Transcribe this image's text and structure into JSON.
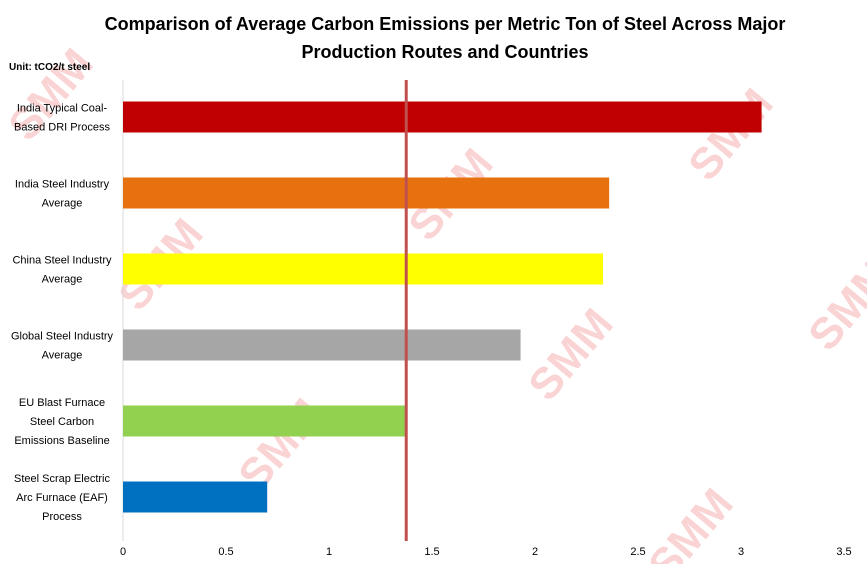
{
  "chart_data": {
    "type": "bar",
    "orientation": "horizontal",
    "title": "Comparison of Average Carbon Emissions per Metric Ton of Steel Across Major Production Routes and Countries",
    "unit_label": "Unit: tCO2/t steel",
    "categories": [
      [
        "India Typical Coal-",
        "Based DRI Process"
      ],
      [
        "India Steel Industry",
        "Average"
      ],
      [
        "China Steel Industry",
        "Average"
      ],
      [
        "Global Steel Industry",
        "Average"
      ],
      [
        "EU Blast Furnace",
        "Steel Carbon",
        "Emissions Baseline"
      ],
      [
        "Steel Scrap Electric",
        "Arc Furnace (EAF)",
        "Process"
      ]
    ],
    "values": [
      3.1,
      2.36,
      2.33,
      1.93,
      1.37,
      0.7
    ],
    "colors": [
      "#C00000",
      "#E8710F",
      "#FFFF00",
      "#A6A6A6",
      "#92D050",
      "#0070C0"
    ],
    "reference_line": {
      "value": 1.37,
      "color": "#C0504D"
    },
    "xlim": [
      0,
      3.5
    ],
    "xticks": [
      "0",
      "0.5",
      "1",
      "1.5",
      "2",
      "2.5",
      "3",
      "3.5"
    ],
    "grid": false,
    "watermark": "SMM Shanghai Metals Market"
  }
}
